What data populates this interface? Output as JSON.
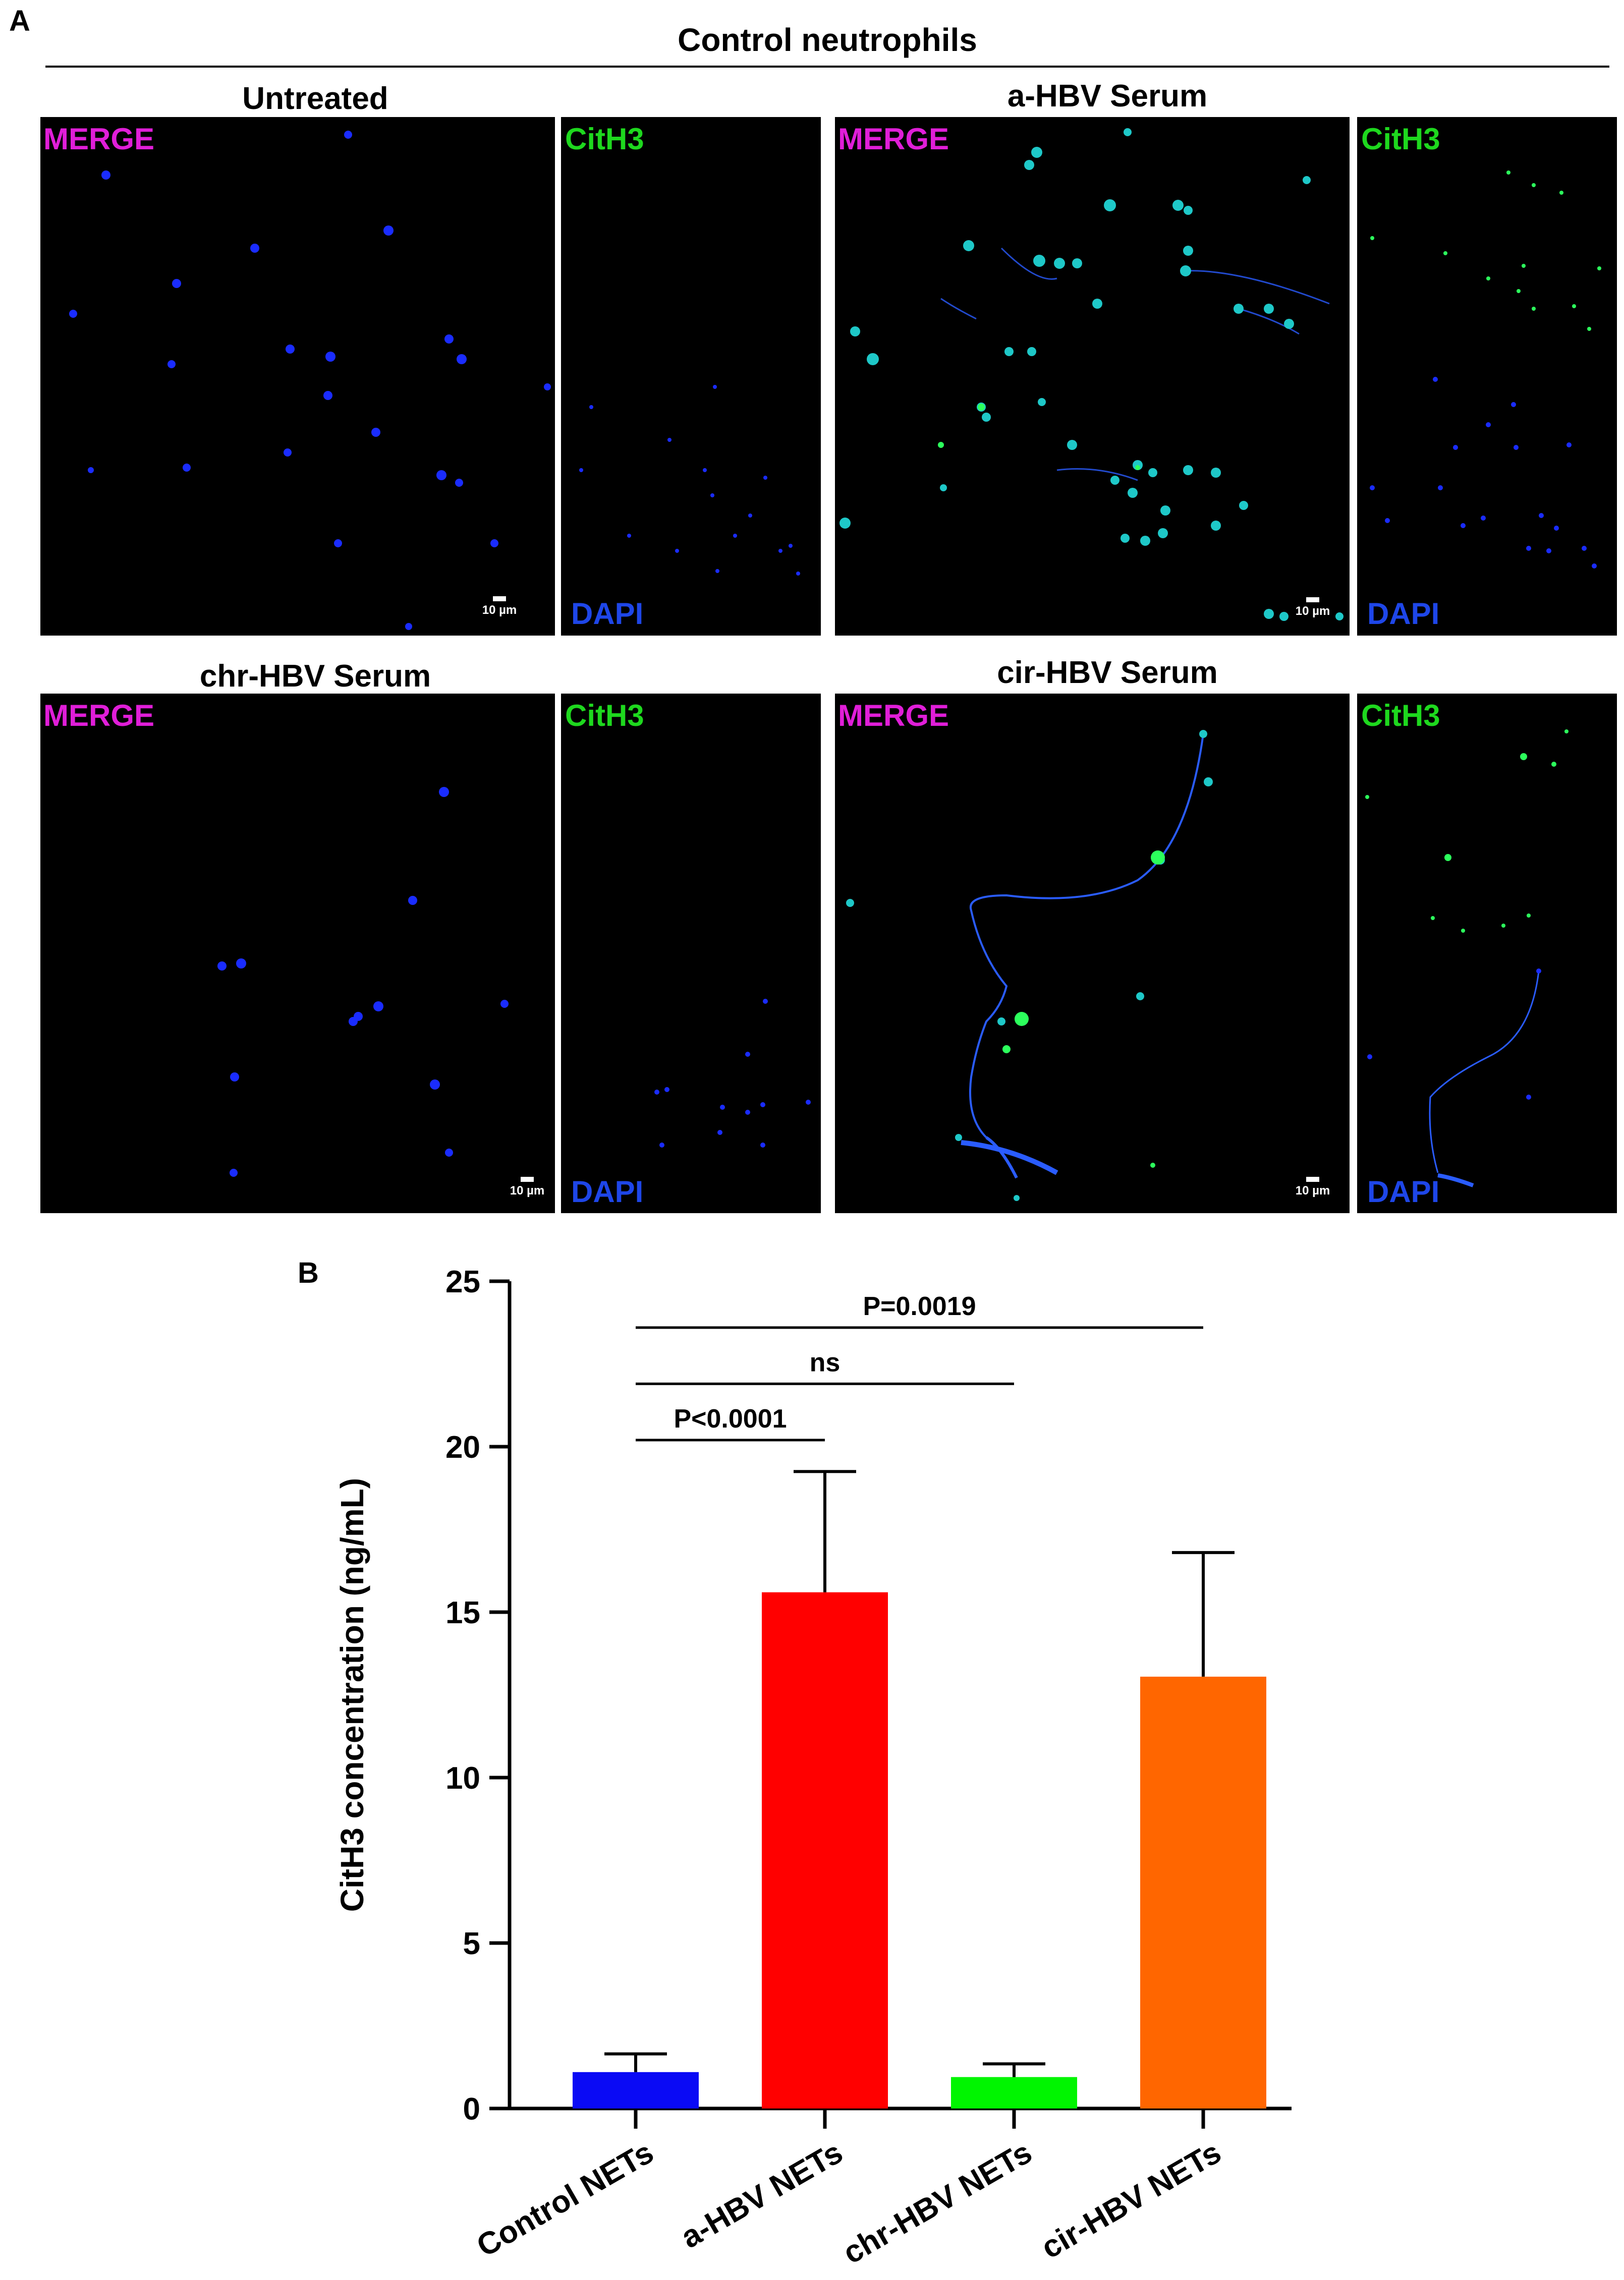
{
  "panel_a": {
    "letter": "A",
    "header": "Control neutrophils",
    "channel_labels": {
      "merge": "MERGE",
      "cith3": "CitH3",
      "dapi": "DAPI"
    },
    "scale_bar": "10 µm",
    "groups": [
      {
        "title": "Untreated"
      },
      {
        "title": "a-HBV Serum"
      },
      {
        "title": "chr-HBV Serum"
      },
      {
        "title": "cir-HBV Serum"
      }
    ]
  },
  "panel_b": {
    "letter": "B",
    "chart_data": {
      "type": "bar",
      "categories": [
        "Control NETs",
        "a-HBV NETs",
        "chr-HBV NETs",
        "cir-HBV NETs"
      ],
      "values": [
        1.1,
        15.6,
        0.95,
        13.05
      ],
      "error_upper": [
        1.65,
        19.25,
        1.35,
        16.8
      ],
      "colors": [
        "#0a0af5",
        "#ff0000",
        "#00f500",
        "#ff6600"
      ],
      "ylabel": "CitH3 concentration (ng/mL)",
      "xlabel": "",
      "ylim": [
        0,
        25
      ],
      "yticks": [
        0,
        5,
        10,
        15,
        20,
        25
      ],
      "grid": false,
      "significance": [
        {
          "from": 0,
          "to": 1,
          "label": "P<0.0001",
          "y": 20.2
        },
        {
          "from": 0,
          "to": 2,
          "label": "ns",
          "y": 21.9
        },
        {
          "from": 0,
          "to": 3,
          "label": "P=0.0019",
          "y": 23.6
        }
      ]
    }
  }
}
